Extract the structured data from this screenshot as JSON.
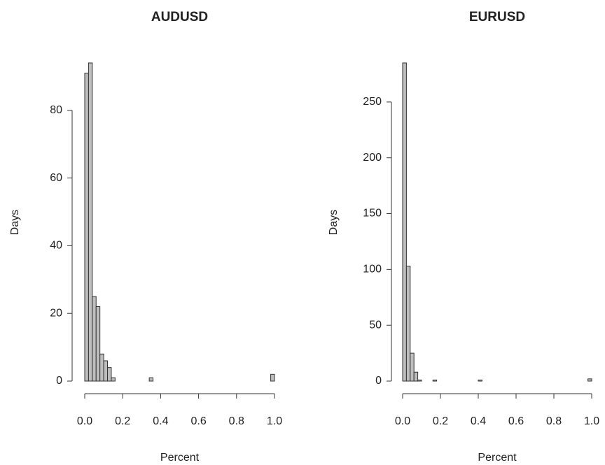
{
  "chart_data": [
    {
      "type": "histogram",
      "title": "AUDUSD",
      "x_label": "Percent",
      "y_label": "Days",
      "color": "#bebebe",
      "bins": [
        0,
        0.02,
        0.04,
        0.06,
        0.08,
        0.1,
        0.12,
        0.14,
        0.16,
        0.18,
        0.2,
        0.22,
        0.24,
        0.26,
        0.28,
        0.3,
        0.32,
        0.34,
        0.36,
        0.38,
        0.4,
        0.42,
        0.44,
        0.46,
        0.48,
        0.5,
        0.52,
        0.54,
        0.56,
        0.58,
        0.6,
        0.62,
        0.64,
        0.66,
        0.68,
        0.7,
        0.72,
        0.74,
        0.76,
        0.78,
        0.8,
        0.82,
        0.84,
        0.86,
        0.88,
        0.9,
        0.92,
        0.94,
        0.96,
        0.98,
        1
      ],
      "counts": [
        91,
        94,
        25,
        22,
        8,
        6,
        4,
        1,
        0,
        0,
        0,
        0,
        0,
        0,
        0,
        0,
        0,
        1,
        0,
        0,
        0,
        0,
        0,
        0,
        0,
        0,
        0,
        0,
        0,
        0,
        0,
        0,
        0,
        0,
        0,
        0,
        0,
        0,
        0,
        0,
        0,
        0,
        0,
        0,
        0,
        0,
        0,
        0,
        0,
        2
      ],
      "xlim": [
        0,
        1
      ],
      "xticks": [
        {
          "value": 0,
          "label": "0.0"
        },
        0.2,
        0.4,
        0.6,
        0.8,
        {
          "value": 1,
          "label": "1.0"
        }
      ],
      "ylim": [
        0,
        94
      ],
      "yticks": [
        0,
        20,
        40,
        60,
        80
      ]
    },
    {
      "type": "histogram",
      "title": "EURUSD",
      "x_label": "Percent",
      "y_label": "Days",
      "color": "#bebebe",
      "bins": [
        0,
        0.02,
        0.04,
        0.06,
        0.08,
        0.1,
        0.12,
        0.14,
        0.16,
        0.18,
        0.2,
        0.22,
        0.24,
        0.26,
        0.28,
        0.3,
        0.32,
        0.34,
        0.36,
        0.38,
        0.4,
        0.42,
        0.44,
        0.46,
        0.48,
        0.5,
        0.52,
        0.54,
        0.56,
        0.58,
        0.6,
        0.62,
        0.64,
        0.66,
        0.68,
        0.7,
        0.72,
        0.74,
        0.76,
        0.78,
        0.8,
        0.82,
        0.84,
        0.86,
        0.88,
        0.9,
        0.92,
        0.94,
        0.96,
        0.98,
        1
      ],
      "counts": [
        285,
        103,
        25,
        8,
        1,
        0,
        0,
        0,
        1,
        0,
        0,
        0,
        0,
        0,
        0,
        0,
        0,
        0,
        0,
        0,
        1,
        0,
        0,
        0,
        0,
        0,
        0,
        0,
        0,
        0,
        0,
        0,
        0,
        0,
        0,
        0,
        0,
        0,
        0,
        0,
        0,
        0,
        0,
        0,
        0,
        0,
        0,
        0,
        0,
        2
      ],
      "xlim": [
        0,
        1
      ],
      "xticks": [
        {
          "value": 0,
          "label": "0.0"
        },
        0.2,
        0.4,
        0.6,
        0.8,
        {
          "value": 1,
          "label": "1.0"
        }
      ],
      "ylim": [
        0,
        285
      ],
      "yticks": [
        0,
        50,
        100,
        150,
        200,
        250
      ]
    }
  ]
}
